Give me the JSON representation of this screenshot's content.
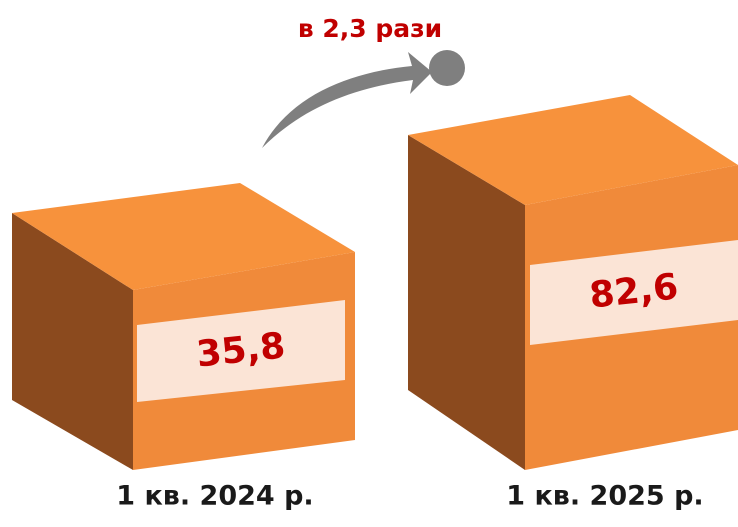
{
  "annotation": "в 2,3 рази",
  "items": [
    {
      "value": "35,8",
      "label": "1 кв. 2024 р."
    },
    {
      "value": "82,6",
      "label": "1 кв. 2025 р."
    }
  ]
}
